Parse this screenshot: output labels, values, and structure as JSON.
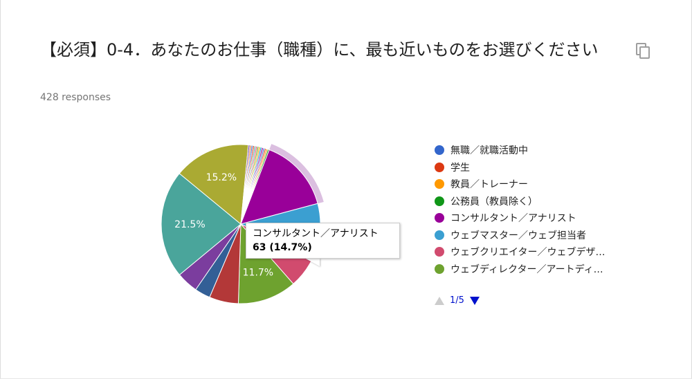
{
  "question": {
    "title": "【必須】0-4．あなたのお仕事（職種）に、最も近いものをお選びください",
    "responses": "428 responses",
    "copy_icon": "copy-icon"
  },
  "chart_data": {
    "type": "pie",
    "total_responses": 428,
    "slices": [
      {
        "label": "無職／就職活動中",
        "percent": 0.3,
        "color": "#3366cc"
      },
      {
        "label": "学生",
        "percent": 0.3,
        "color": "#dc3912"
      },
      {
        "label": "教員／トレーナー",
        "percent": 0.3,
        "color": "#ff9900"
      },
      {
        "label": "公務員（教員除く）",
        "percent": 0.3,
        "color": "#109618"
      },
      {
        "label": "コンサルタント／アナリスト",
        "percent": 14.7,
        "color": "#990099",
        "count": 63,
        "highlighted": true
      },
      {
        "label": "ウェブマスター／ウェブ担当者",
        "percent": 11.0,
        "color": "#3b9fd1",
        "data_label": "11%"
      },
      {
        "label": "ウェブクリエイター／ウェブデザイナー",
        "percent": 6.3,
        "color": "#d14b6e"
      },
      {
        "label": "ウェブディレクター／アートディレクター",
        "percent": 11.7,
        "color": "#6ea22f",
        "data_label": "11.7%"
      },
      {
        "label": "",
        "percent": 5.8,
        "color": "#b33838"
      },
      {
        "label": "",
        "percent": 3.1,
        "color": "#335f96"
      },
      {
        "label": "",
        "percent": 4.3,
        "color": "#7b3d9e"
      },
      {
        "label": "",
        "percent": 21.5,
        "color": "#4aa59b",
        "data_label": "21.5%"
      },
      {
        "label": "",
        "percent": 15.2,
        "color": "#aaaa33",
        "data_label": "15.2%"
      },
      {
        "label": "",
        "percent": 0.3,
        "color": "#6a3a9e"
      },
      {
        "label": "",
        "percent": 0.3,
        "color": "#e07a3a"
      },
      {
        "label": "",
        "percent": 0.3,
        "color": "#3366cc"
      },
      {
        "label": "",
        "percent": 0.3,
        "color": "#dc3912"
      },
      {
        "label": "",
        "percent": 0.3,
        "color": "#4aa59b"
      },
      {
        "label": "",
        "percent": 0.3,
        "color": "#dd4477"
      },
      {
        "label": "",
        "percent": 0.3,
        "color": "#66aa00"
      },
      {
        "label": "",
        "percent": 0.3,
        "color": "#ff9900"
      },
      {
        "label": "",
        "percent": 0.3,
        "color": "#0099c6"
      },
      {
        "label": "",
        "percent": 0.3,
        "color": "#990099"
      }
    ],
    "legend": {
      "placement": "right",
      "items": [
        {
          "label": "無職／就職活動中",
          "color": "#3366cc"
        },
        {
          "label": "学生",
          "color": "#dc3912"
        },
        {
          "label": "教員／トレーナー",
          "color": "#ff9900"
        },
        {
          "label": "公務員（教員除く）",
          "color": "#109618"
        },
        {
          "label": "コンサルタント／アナリスト",
          "color": "#990099"
        },
        {
          "label": "ウェブマスター／ウェブ担当者",
          "color": "#3b9fd1"
        },
        {
          "label": "ウェブクリエイター／ウェブデザ…",
          "color": "#d14b6e"
        },
        {
          "label": "ウェブディレクター／アートディ…",
          "color": "#6ea22f"
        }
      ],
      "pager": "1/5"
    },
    "tooltip": {
      "title": "コンサルタント／アナリスト",
      "value": "63 (14.7%)"
    }
  }
}
